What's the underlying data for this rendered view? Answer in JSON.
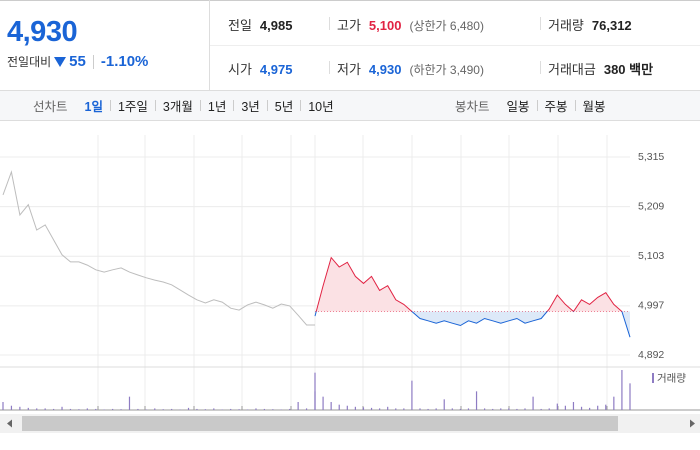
{
  "quote": {
    "price": "4,930",
    "change_label": "전일대비",
    "change": "55",
    "change_rate": "-1.10%"
  },
  "summary": {
    "rows": [
      [
        {
          "label": "전일",
          "value": "4,985",
          "color": "#222222"
        },
        {
          "label": "고가",
          "value": "5,100",
          "note": "(상한가 6,480)",
          "color": "#e12343"
        },
        {
          "label": "거래량",
          "value": "76,312",
          "color": "#222222"
        }
      ],
      [
        {
          "label": "시가",
          "value": "4,975",
          "color": "#1a64d6"
        },
        {
          "label": "저가",
          "value": "4,930",
          "note": "(하한가 3,490)",
          "color": "#1a64d6"
        },
        {
          "label": "거래대금",
          "value": "380 백만",
          "color": "#222222"
        }
      ]
    ]
  },
  "tabs": {
    "line_label": "선차트",
    "line_periods": [
      "1일",
      "1주일",
      "3개월",
      "1년",
      "3년",
      "5년",
      "10년"
    ],
    "active_index": 0,
    "candle_label": "봉차트",
    "candle_periods": [
      "일봉",
      "주봉",
      "월봉"
    ]
  },
  "chart_data": {
    "type": "line",
    "ylim": [
      4892,
      5315
    ],
    "yticks": [
      {
        "value": 5315,
        "label": "5,315"
      },
      {
        "value": 5209,
        "label": "5,209"
      },
      {
        "value": 5103,
        "label": "5,103"
      },
      {
        "value": 4997,
        "label": "4,997"
      },
      {
        "value": 4892,
        "label": "4,892"
      }
    ],
    "grid": true,
    "reference_line": 4985,
    "series": [
      {
        "color": "#bdbdbd",
        "values": [
          5234,
          5283,
          5191,
          5213,
          5159,
          5170,
          5138,
          5106,
          5091,
          5091,
          5084,
          5074,
          5069,
          5074,
          5078,
          5069,
          5063,
          5057,
          5052,
          5048,
          5042,
          5031,
          5020,
          5010,
          5003,
          5010,
          5005,
          4992,
          4988,
          4999,
          5005,
          4999,
          4992,
          5001,
          4997,
          4977,
          4956,
          4956
        ]
      },
      {
        "color_up": "#e12343",
        "color_down": "#1a64d6",
        "fill_up": "#fbe1e4",
        "fill_down": "#dde9f8",
        "values": [
          4975,
          5040,
          5100,
          5080,
          5090,
          5060,
          5045,
          5060,
          5030,
          5040,
          5010,
          5000,
          4985,
          4970,
          4965,
          4960,
          4965,
          4960,
          4955,
          4965,
          4960,
          4970,
          4965,
          4960,
          4965,
          4970,
          4960,
          4965,
          4970,
          4990,
          5020,
          5000,
          4985,
          5010,
          5000,
          5015,
          5025,
          5000,
          4985,
          4930
        ]
      }
    ],
    "volume": {
      "name": "거래량",
      "color": "#8e7cc3",
      "values": [
        1500,
        800,
        600,
        400,
        300,
        300,
        200,
        600,
        200,
        150,
        300,
        200,
        100,
        200,
        150,
        2500,
        200,
        100,
        300,
        150,
        200,
        100,
        400,
        200,
        150,
        300,
        100,
        200,
        150,
        100,
        300,
        200,
        150,
        100,
        200,
        1500,
        300,
        3500,
        7000,
        2500,
        1500,
        1000,
        800,
        600,
        500,
        400,
        300,
        600,
        300,
        300,
        5500,
        300,
        200,
        300,
        2000,
        300,
        200,
        300,
        3500,
        300,
        200,
        300,
        300,
        200,
        300,
        2500,
        200,
        300,
        1200,
        800,
        1500,
        600,
        400,
        800,
        1000,
        2500,
        7500,
        5000
      ]
    }
  }
}
